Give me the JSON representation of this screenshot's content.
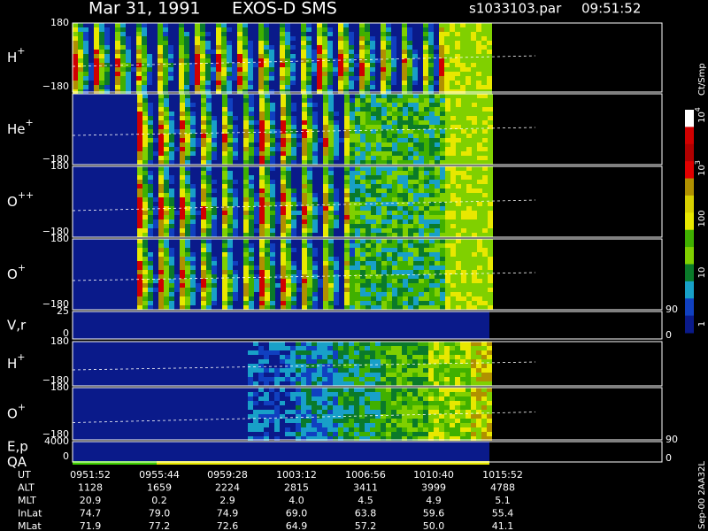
{
  "header": {
    "date": "Mar 31, 1991",
    "instrument": "EXOS-D SMS",
    "file": "s1033103.par",
    "time": "09:51:52"
  },
  "panels": [
    {
      "label": "H",
      "sup": "+",
      "top": "180",
      "bottom": "−180"
    },
    {
      "label": "He",
      "sup": "+",
      "bottom": "−180"
    },
    {
      "label": "O",
      "sup": "++",
      "top": "180",
      "bottom": "−180"
    },
    {
      "label": "O",
      "sup": "+",
      "top": "180",
      "bottom": "−180"
    },
    {
      "label": "V,r",
      "top": "25",
      "bottom": "0",
      "right_top": "90",
      "right_bottom": "0"
    },
    {
      "label": "H",
      "sup": "+",
      "top": "180",
      "bottom": "−180"
    },
    {
      "label": "O",
      "sup": "+",
      "top": "180",
      "bottom": "−180"
    },
    {
      "label": "E,p",
      "label2": "QA",
      "top": "4000",
      "bottom": "0",
      "right_top": "90",
      "right_bottom": "0"
    }
  ],
  "colorbar": {
    "unit": "Ct/Smp",
    "labels": [
      "1",
      "10",
      "100"
    ],
    "exp_base": "10",
    "exp3": "3",
    "exp4": "4"
  },
  "table": {
    "rows": [
      {
        "label": "UT",
        "values": [
          "0951:52",
          "0955:44",
          "0959:28",
          "1003:12",
          "1006:56",
          "1010:40",
          "1015:52"
        ]
      },
      {
        "label": "ALT",
        "values": [
          "1128",
          "1659",
          "2224",
          "2815",
          "3411",
          "3999",
          "4788"
        ]
      },
      {
        "label": "MLT",
        "values": [
          "20.9",
          "0.2",
          "2.9",
          "4.0",
          "4.5",
          "4.9",
          "5.1"
        ]
      },
      {
        "label": "InLat",
        "values": [
          "74.7",
          "79.0",
          "74.9",
          "69.0",
          "63.8",
          "59.6",
          "55.4"
        ]
      },
      {
        "label": "MLat",
        "values": [
          "71.9",
          "77.2",
          "72.6",
          "64.9",
          "57.2",
          "50.0",
          "41.1"
        ]
      }
    ]
  },
  "footer": "Sep-00  2AA32L"
}
